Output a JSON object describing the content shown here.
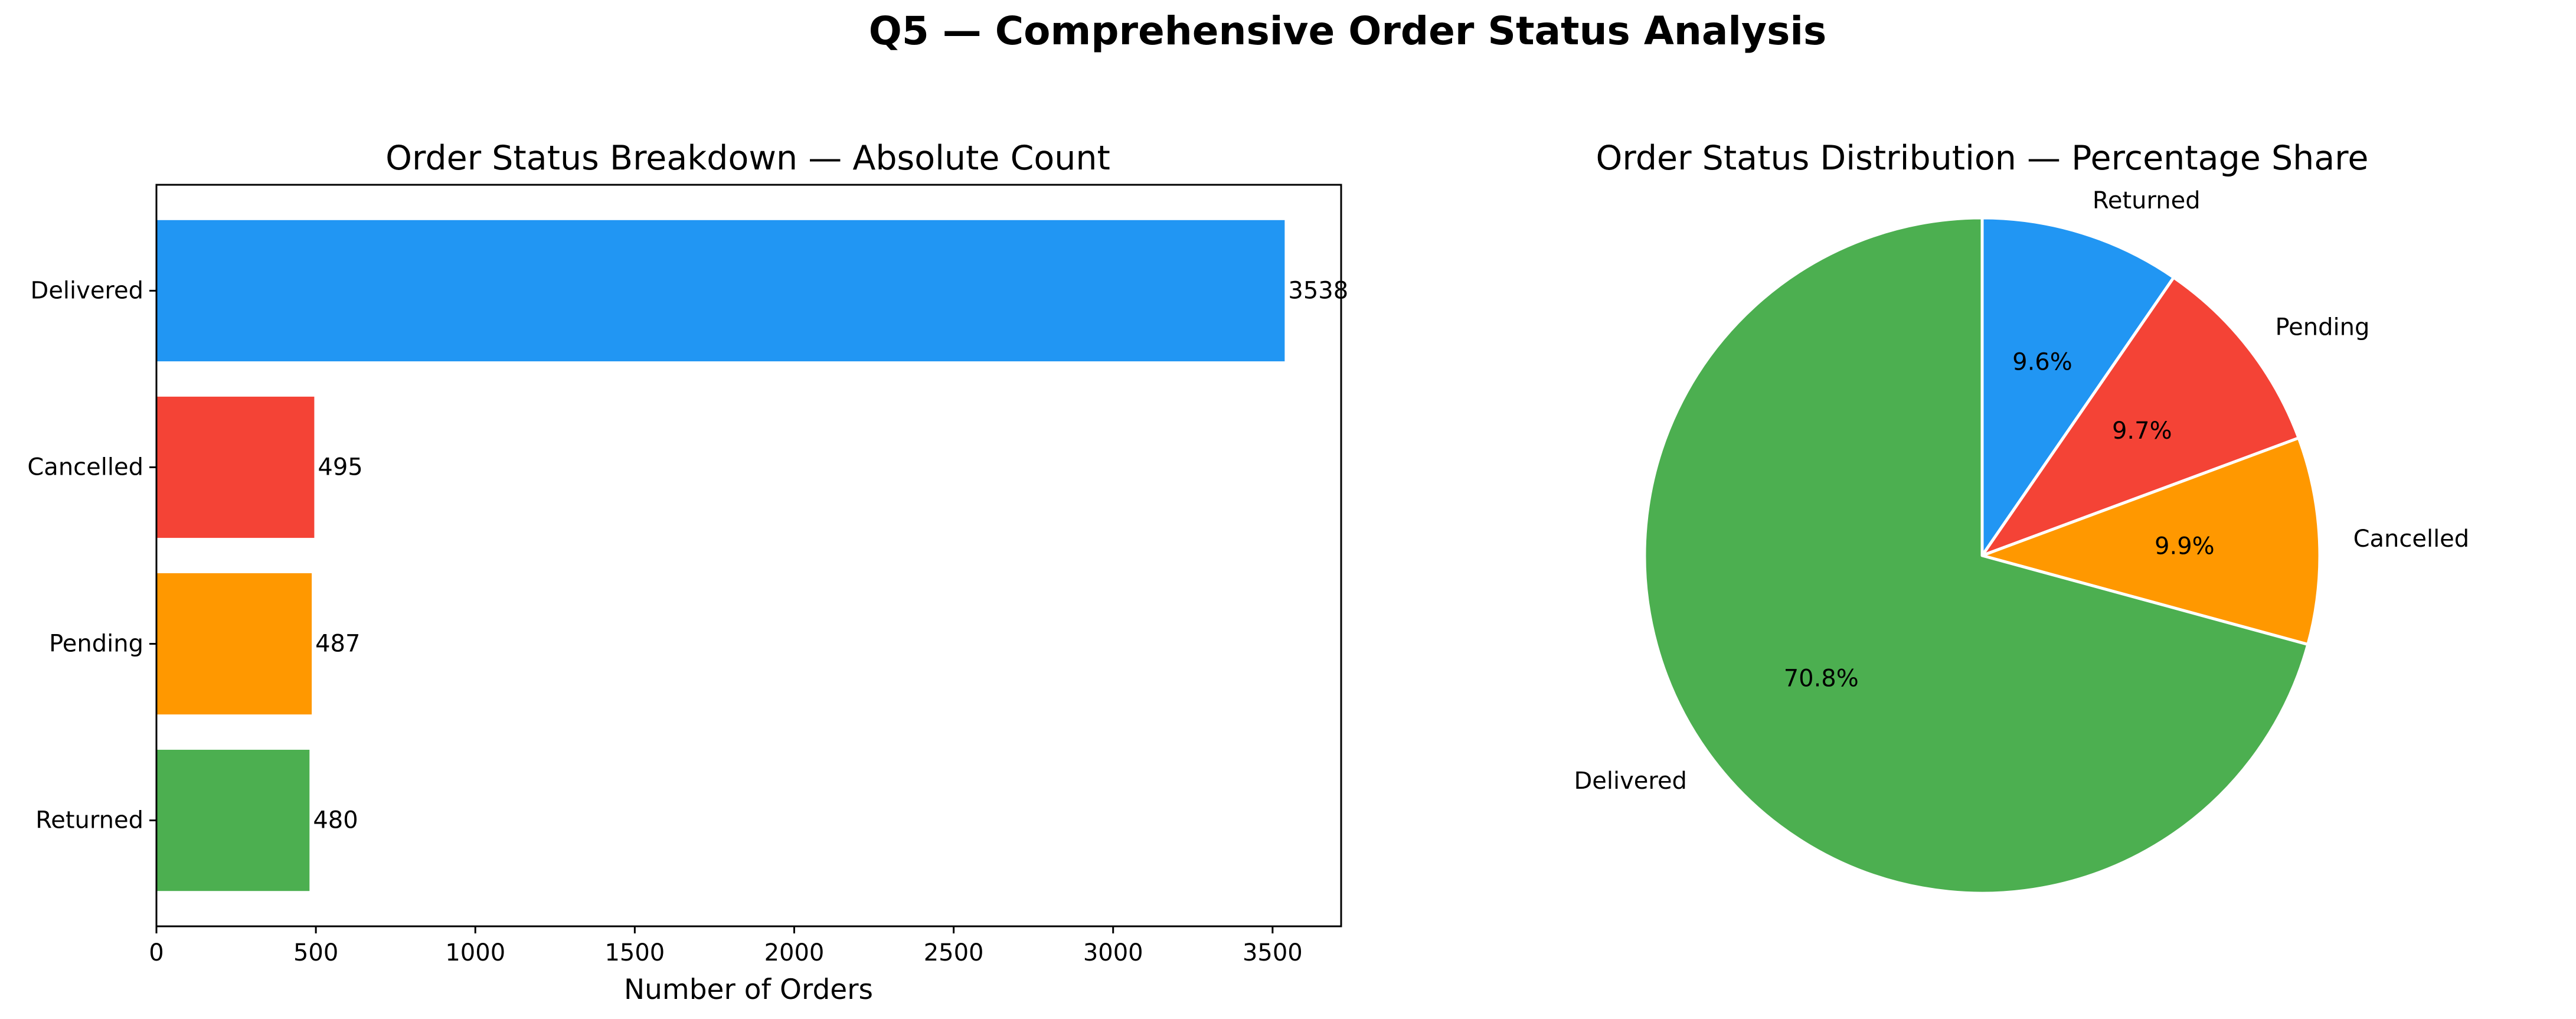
{
  "figure_title": "Q5 — Comprehensive Order Status Analysis",
  "chart_data": [
    {
      "type": "bar",
      "orientation": "horizontal",
      "title": "Order Status Breakdown — Absolute Count",
      "xlabel": "Number of Orders",
      "ylabel": "",
      "categories": [
        "Delivered",
        "Cancelled",
        "Pending",
        "Returned"
      ],
      "values": [
        3538,
        495,
        487,
        480
      ],
      "value_labels": [
        "3538",
        "495",
        "487",
        "480"
      ],
      "colors": [
        "#2196F3",
        "#F44336",
        "#FF9800",
        "#4CAF50"
      ],
      "xlim": [
        0,
        3715
      ],
      "xticks": [
        0,
        500,
        1000,
        1500,
        2000,
        2500,
        3000,
        3500
      ],
      "xtick_labels": [
        "0",
        "500",
        "1000",
        "1500",
        "2000",
        "2500",
        "3000",
        "3500"
      ],
      "grid": false,
      "legend": "none"
    },
    {
      "type": "pie",
      "title": "Order Status Distribution — Percentage Share",
      "labels": [
        "Returned",
        "Pending",
        "Cancelled",
        "Delivered"
      ],
      "values": [
        480,
        487,
        495,
        3538
      ],
      "percent_labels": [
        "9.6%",
        "9.7%",
        "9.9%",
        "70.8%"
      ],
      "colors": [
        "#2196F3",
        "#F44336",
        "#FF9800",
        "#4CAF50"
      ],
      "start_angle": 90,
      "direction": "clockwise",
      "edge_color": "#ffffff",
      "legend": "none"
    }
  ]
}
